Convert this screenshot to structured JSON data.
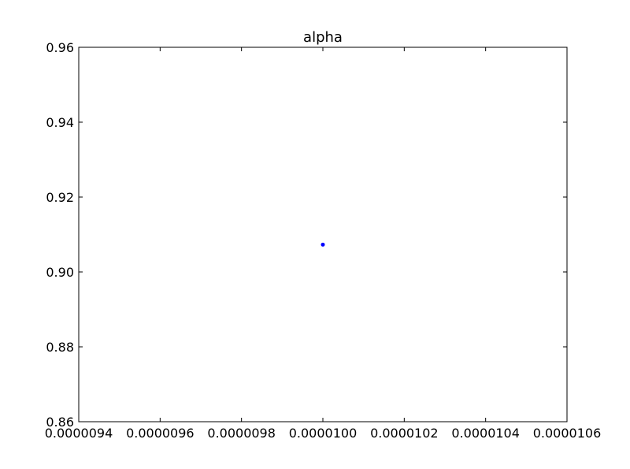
{
  "chart_data": {
    "type": "scatter",
    "title": "alpha",
    "xlabel": "",
    "ylabel": "",
    "xlim": [
      9.4e-06,
      1.06e-05
    ],
    "ylim": [
      0.86,
      0.96
    ],
    "x_ticks": [
      9.4e-06,
      9.6e-06,
      9.8e-06,
      1e-05,
      1.02e-05,
      1.04e-05,
      1.06e-05
    ],
    "x_tick_labels": [
      "0.0000094",
      "0.0000096",
      "0.0000098",
      "0.0000100",
      "0.0000102",
      "0.0000104",
      "0.0000106"
    ],
    "y_ticks": [
      0.86,
      0.88,
      0.9,
      0.92,
      0.94,
      0.96
    ],
    "y_tick_labels": [
      "0.86",
      "0.88",
      "0.90",
      "0.92",
      "0.94",
      "0.96"
    ],
    "grid": false,
    "legend": "none",
    "series": [
      {
        "color": "#0000ff",
        "x": [
          1e-05
        ],
        "y": [
          0.9073
        ]
      }
    ]
  }
}
